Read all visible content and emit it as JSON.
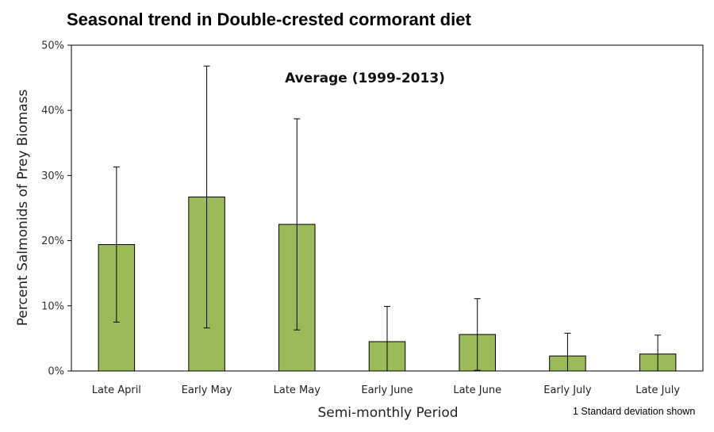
{
  "title": "Seasonal trend in Double-crested cormorant diet",
  "footnote": "1 Standard deviation shown",
  "colors": {
    "bar_fill": "#9bbb59",
    "bar_stroke": "#000000",
    "error_bar": "#000000",
    "axis": "#000000"
  },
  "chart_data": {
    "type": "bar",
    "annotation": "Average (1999-2013)",
    "xlabel": "Semi-monthly Period",
    "ylabel": "Percent Salmonids of Prey Biomass",
    "ylim": [
      0,
      50
    ],
    "yticks": [
      "0%",
      "10%",
      "20%",
      "30%",
      "40%",
      "50%"
    ],
    "ytick_values": [
      0,
      10,
      20,
      30,
      40,
      50
    ],
    "grid": false,
    "legend": "none",
    "categories": [
      "Late April",
      "Early May",
      "Late May",
      "Early June",
      "Late June",
      "Early July",
      "Late July"
    ],
    "values": [
      19.4,
      26.7,
      22.5,
      4.5,
      5.6,
      2.3,
      2.6
    ],
    "error_plus_minus": [
      11.9,
      20.1,
      16.2,
      5.4,
      5.5,
      3.5,
      2.9
    ]
  }
}
